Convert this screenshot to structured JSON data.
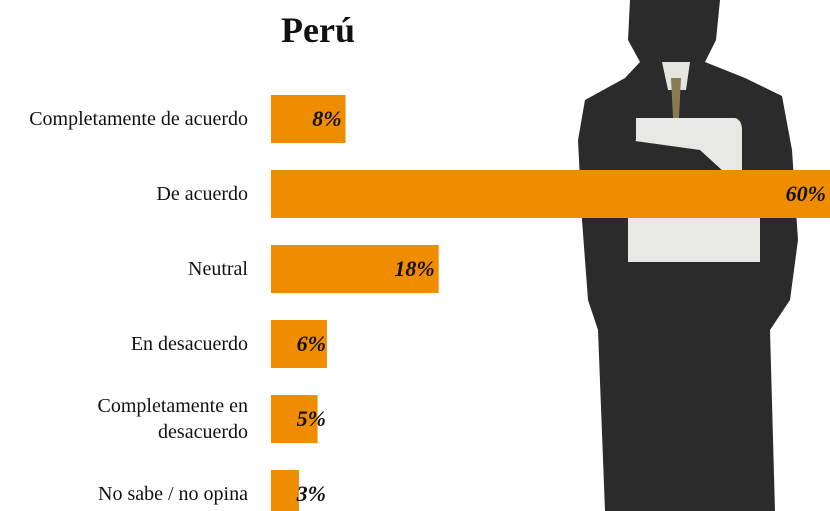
{
  "chart_data": {
    "type": "bar",
    "orientation": "horizontal",
    "title": "Perú",
    "categories": [
      "Completamente de acuerdo",
      "De acuerdo",
      "Neutral",
      "En desacuerdo",
      "Completamente en desacuerdo",
      "No sabe / no opina"
    ],
    "values": [
      8,
      60,
      18,
      6,
      5,
      3
    ],
    "value_labels": [
      "8%",
      "60%",
      "18%",
      "6%",
      "5%",
      "3%"
    ],
    "color": "#f08c00"
  }
}
